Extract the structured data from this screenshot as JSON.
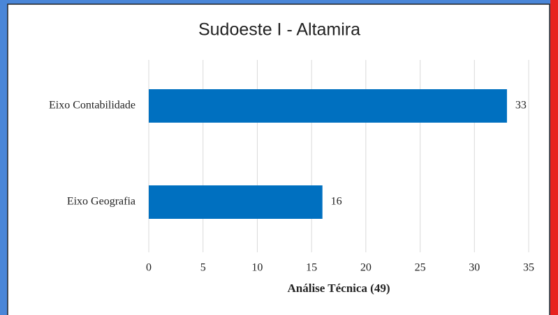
{
  "chart_data": {
    "type": "bar",
    "orientation": "horizontal",
    "title": "Sudoeste I - Altamira",
    "xlabel": "Análise Técnica (49)",
    "categories": [
      "Eixo Contabilidade",
      "Eixo Geografia"
    ],
    "values": [
      33,
      16
    ],
    "color": "#0070c0",
    "xlim": [
      0,
      35
    ],
    "xticks": [
      0,
      5,
      10,
      15,
      20,
      25,
      30,
      35
    ],
    "grid": true
  }
}
